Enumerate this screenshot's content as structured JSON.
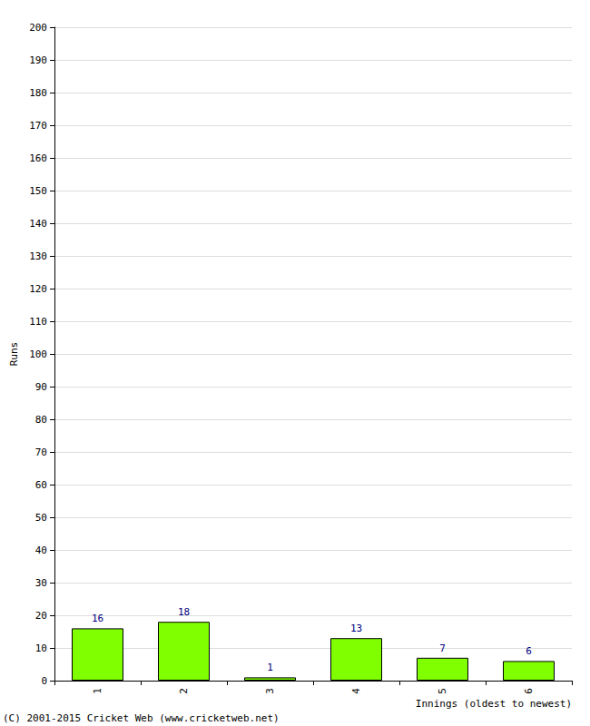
{
  "chart_data": {
    "type": "bar",
    "x_label": "Innings (oldest to newest)",
    "y_label": "Runs",
    "categories": [
      "1",
      "2",
      "3",
      "4",
      "5",
      "6"
    ],
    "values": [
      16,
      18,
      1,
      13,
      7,
      6
    ],
    "color": "#80ff00",
    "ylim": [
      0,
      200
    ],
    "yticks": [
      0,
      10,
      20,
      30,
      40,
      50,
      60,
      70,
      80,
      90,
      100,
      110,
      120,
      130,
      140,
      150,
      160,
      170,
      180,
      190,
      200
    ],
    "grid": true,
    "data_labels": true,
    "annotations": [
      "(C) 2001-2015 Cricket Web (www.cricketweb.net)"
    ]
  }
}
